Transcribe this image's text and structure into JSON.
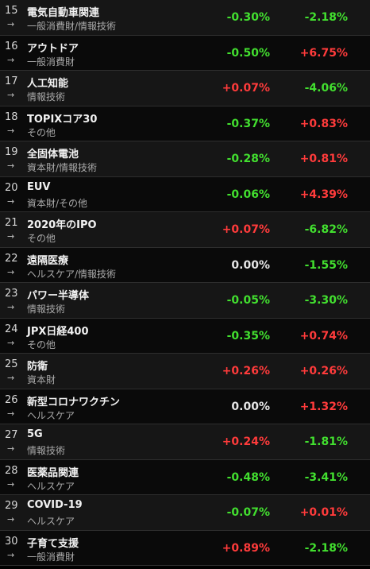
{
  "colors": {
    "up": "#ff3b3b",
    "down": "#42df2f",
    "neutral": "#e6e6e6"
  },
  "rows": [
    {
      "rank": "15",
      "arrow": "→",
      "name": "電気自動車関連",
      "category": "一般消費財/情報技術",
      "change1": "-0.30%",
      "change1_dir": "green",
      "change2": "-2.18%",
      "change2_dir": "green"
    },
    {
      "rank": "16",
      "arrow": "→",
      "name": "アウトドア",
      "category": "一般消費財",
      "change1": "-0.50%",
      "change1_dir": "green",
      "change2": "+6.75%",
      "change2_dir": "red"
    },
    {
      "rank": "17",
      "arrow": "→",
      "name": "人工知能",
      "category": "情報技術",
      "change1": "+0.07%",
      "change1_dir": "red",
      "change2": "-4.06%",
      "change2_dir": "green"
    },
    {
      "rank": "18",
      "arrow": "→",
      "name": "TOPIXコア30",
      "category": "その他",
      "change1": "-0.37%",
      "change1_dir": "green",
      "change2": "+0.83%",
      "change2_dir": "red"
    },
    {
      "rank": "19",
      "arrow": "→",
      "name": "全固体電池",
      "category": "資本財/情報技術",
      "change1": "-0.28%",
      "change1_dir": "green",
      "change2": "+0.81%",
      "change2_dir": "red"
    },
    {
      "rank": "20",
      "arrow": "→",
      "name": "EUV",
      "category": "資本財/その他",
      "change1": "-0.06%",
      "change1_dir": "green",
      "change2": "+4.39%",
      "change2_dir": "red"
    },
    {
      "rank": "21",
      "arrow": "→",
      "name": "2020年のIPO",
      "category": "その他",
      "change1": "+0.07%",
      "change1_dir": "red",
      "change2": "-6.82%",
      "change2_dir": "green"
    },
    {
      "rank": "22",
      "arrow": "→",
      "name": "遠隔医療",
      "category": "ヘルスケア/情報技術",
      "change1": "0.00%",
      "change1_dir": "neutral",
      "change2": "-1.55%",
      "change2_dir": "green"
    },
    {
      "rank": "23",
      "arrow": "→",
      "name": "パワー半導体",
      "category": "情報技術",
      "change1": "-0.05%",
      "change1_dir": "green",
      "change2": "-3.30%",
      "change2_dir": "green"
    },
    {
      "rank": "24",
      "arrow": "→",
      "name": "JPX日経400",
      "category": "その他",
      "change1": "-0.35%",
      "change1_dir": "green",
      "change2": "+0.74%",
      "change2_dir": "red"
    },
    {
      "rank": "25",
      "arrow": "→",
      "name": "防衛",
      "category": "資本財",
      "change1": "+0.26%",
      "change1_dir": "red",
      "change2": "+0.26%",
      "change2_dir": "red"
    },
    {
      "rank": "26",
      "arrow": "→",
      "name": "新型コロナワクチン",
      "category": "ヘルスケア",
      "change1": "0.00%",
      "change1_dir": "neutral",
      "change2": "+1.32%",
      "change2_dir": "red"
    },
    {
      "rank": "27",
      "arrow": "→",
      "name": "5G",
      "category": "情報技術",
      "change1": "+0.24%",
      "change1_dir": "red",
      "change2": "-1.81%",
      "change2_dir": "green"
    },
    {
      "rank": "28",
      "arrow": "→",
      "name": "医薬品関連",
      "category": "ヘルスケア",
      "change1": "-0.48%",
      "change1_dir": "green",
      "change2": "-3.41%",
      "change2_dir": "green"
    },
    {
      "rank": "29",
      "arrow": "→",
      "name": "COVID-19",
      "category": "ヘルスケア",
      "change1": "-0.07%",
      "change1_dir": "green",
      "change2": "+0.01%",
      "change2_dir": "red"
    },
    {
      "rank": "30",
      "arrow": "→",
      "name": "子育て支援",
      "category": "一般消費財",
      "change1": "+0.89%",
      "change1_dir": "red",
      "change2": "-2.18%",
      "change2_dir": "green"
    }
  ]
}
